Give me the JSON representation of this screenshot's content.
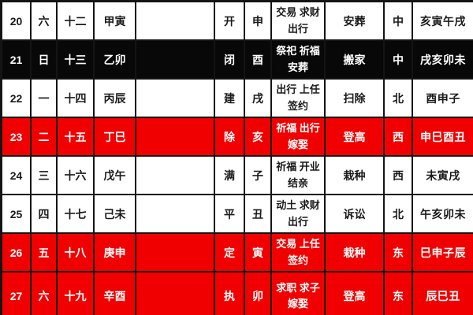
{
  "colors": {
    "grid": "#141414",
    "normal-bg": "#ffffff",
    "normal-text": "#1a1a1a",
    "inverted-bg": "#080808",
    "inverted-text": "#ffffff",
    "highlight-bg": "#f00000",
    "highlight-text": "#ffffff"
  },
  "table": {
    "rows": [
      {
        "variant": "normal",
        "day": "20",
        "weekday": "六",
        "lunar": "十二",
        "ganzhi": "甲寅",
        "spacer": "",
        "jianchu": "开",
        "branch": "申",
        "acts_line1": "交易 求财",
        "acts_line2": "出行",
        "activity": "安葬",
        "direction": "中",
        "hours": "亥寅午戌"
      },
      {
        "variant": "inverted",
        "day": "21",
        "weekday": "日",
        "lunar": "十三",
        "ganzhi": "乙卯",
        "spacer": "",
        "jianchu": "闭",
        "branch": "酉",
        "acts_line1": "祭祀 祈福",
        "acts_line2": "安葬",
        "activity": "搬家",
        "direction": "中",
        "hours": "戌亥卯未"
      },
      {
        "variant": "normal",
        "day": "22",
        "weekday": "一",
        "lunar": "十四",
        "ganzhi": "丙辰",
        "spacer": "",
        "jianchu": "建",
        "branch": "戌",
        "acts_line1": "出行 上任",
        "acts_line2": "签约",
        "activity": "扫除",
        "direction": "北",
        "hours": "酉申子"
      },
      {
        "variant": "highlight",
        "day": "23",
        "weekday": "二",
        "lunar": "十五",
        "ganzhi": "丁巳",
        "spacer": "",
        "jianchu": "除",
        "branch": "亥",
        "acts_line1": "祈福 出行",
        "acts_line2": "嫁娶",
        "activity": "登高",
        "direction": "西",
        "hours": "申巳酉丑"
      },
      {
        "variant": "normal",
        "day": "24",
        "weekday": "三",
        "lunar": "十六",
        "ganzhi": "戊午",
        "spacer": "",
        "jianchu": "满",
        "branch": "子",
        "acts_line1": "祈福 开业",
        "acts_line2": "结亲",
        "activity": "栽种",
        "direction": "西",
        "hours": "未寅戌"
      },
      {
        "variant": "normal",
        "day": "25",
        "weekday": "四",
        "lunar": "十七",
        "ganzhi": "己未",
        "spacer": "",
        "jianchu": "平",
        "branch": "丑",
        "acts_line1": "动土 求财",
        "acts_line2": "出行",
        "activity": "诉讼",
        "direction": "北",
        "hours": "午亥卯未"
      },
      {
        "variant": "highlight",
        "day": "26",
        "weekday": "五",
        "lunar": "十八",
        "ganzhi": "庚申",
        "spacer": "",
        "jianchu": "定",
        "branch": "寅",
        "acts_line1": "交易 上任",
        "acts_line2": "签约",
        "activity": "栽种",
        "direction": "东",
        "hours": "巳申子辰"
      },
      {
        "variant": "highlight",
        "day": "27",
        "weekday": "六",
        "lunar": "十九",
        "ganzhi": "辛酉",
        "spacer": "",
        "jianchu": "执",
        "branch": "卯",
        "acts_line1": "求职 求子",
        "acts_line2": "嫁娶",
        "activity": "登高",
        "direction": "东",
        "hours": "辰巳丑"
      }
    ]
  }
}
